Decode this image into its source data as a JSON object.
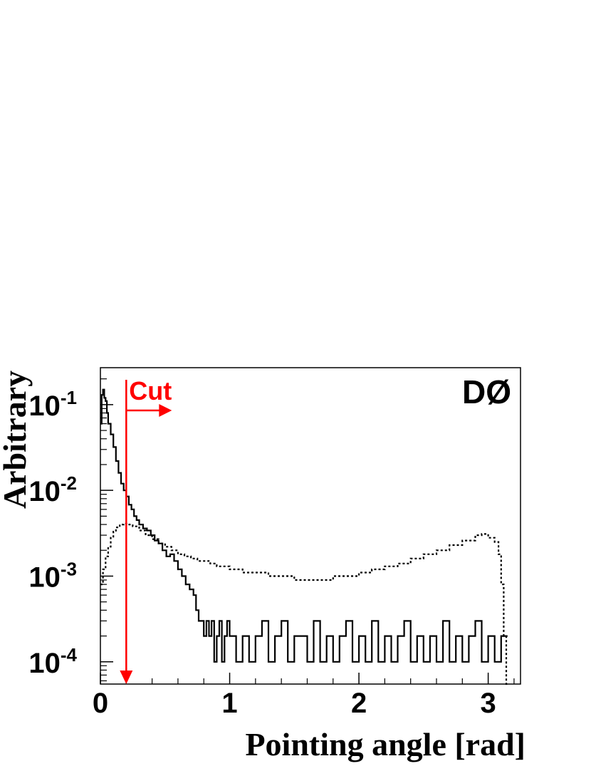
{
  "chart_data": {
    "type": "line",
    "xlabel": "Pointing angle [rad]",
    "ylabel": "Arbitrary",
    "xlim": [
      0,
      3.25
    ],
    "ylim": [
      5.5e-05,
      0.27
    ],
    "yscale": "log",
    "x_ticks": [
      {
        "value": 0,
        "label": "0"
      },
      {
        "value": 1,
        "label": "1"
      },
      {
        "value": 2,
        "label": "2"
      },
      {
        "value": 3,
        "label": "3"
      }
    ],
    "y_ticks": [
      {
        "value": 0.1,
        "base": "10",
        "exp": "-1"
      },
      {
        "value": 0.01,
        "base": "10",
        "exp": "-2"
      },
      {
        "value": 0.001,
        "base": "10",
        "exp": "-3"
      },
      {
        "value": 0.0001,
        "base": "10",
        "exp": "-4"
      }
    ],
    "experiment_label": "DØ",
    "cut": {
      "label": "Cut",
      "x": 0.2,
      "color": "#ff0000",
      "direction": "right"
    },
    "series": [
      {
        "style": "solid",
        "x": [
          0.0,
          0.01,
          0.02,
          0.03,
          0.04,
          0.05,
          0.06,
          0.08,
          0.1,
          0.12,
          0.14,
          0.16,
          0.18,
          0.2,
          0.22,
          0.24,
          0.26,
          0.28,
          0.3,
          0.33,
          0.36,
          0.39,
          0.42,
          0.45,
          0.48,
          0.51,
          0.54,
          0.57,
          0.6,
          0.63,
          0.66,
          0.69,
          0.72,
          0.74,
          0.76,
          0.78,
          0.8,
          0.82,
          0.84,
          0.86,
          0.88,
          0.9,
          0.92,
          0.94,
          0.96,
          0.98,
          1.0,
          1.05,
          1.1,
          1.15,
          1.2,
          1.25,
          1.3,
          1.35,
          1.4,
          1.45,
          1.5,
          1.55,
          1.6,
          1.65,
          1.7,
          1.75,
          1.8,
          1.85,
          1.9,
          1.95,
          2.0,
          2.05,
          2.1,
          2.15,
          2.2,
          2.25,
          2.3,
          2.35,
          2.4,
          2.45,
          2.5,
          2.55,
          2.6,
          2.65,
          2.7,
          2.75,
          2.8,
          2.85,
          2.9,
          2.95,
          3.0,
          3.05,
          3.1
        ],
        "values": [
          0.06,
          0.13,
          0.15,
          0.12,
          0.11,
          0.08,
          0.06,
          0.045,
          0.032,
          0.022,
          0.016,
          0.012,
          0.01,
          0.0085,
          0.0068,
          0.006,
          0.005,
          0.0045,
          0.004,
          0.0036,
          0.0034,
          0.003,
          0.0026,
          0.0024,
          0.002,
          0.0017,
          0.0018,
          0.0015,
          0.0012,
          0.001,
          0.0008,
          0.0007,
          0.0006,
          0.0004,
          0.0003,
          0.0003,
          0.0002,
          0.0003,
          0.0002,
          0.0003,
          0.0001,
          0.0002,
          0.0003,
          0.0001,
          0.0002,
          0.0003,
          0.0002,
          0.0001,
          0.0002,
          0.0001,
          0.0002,
          0.0003,
          0.0001,
          0.0002,
          0.0003,
          0.0001,
          0.0002,
          0.0002,
          0.0001,
          0.0003,
          0.0001,
          0.0002,
          0.0001,
          0.0002,
          0.0003,
          0.0001,
          0.0002,
          0.0001,
          0.0003,
          0.0001,
          0.0002,
          0.0001,
          0.0002,
          0.0003,
          0.0001,
          0.0002,
          0.0001,
          0.0002,
          0.0001,
          0.0003,
          0.0001,
          0.0002,
          0.0001,
          0.0002,
          0.0003,
          0.0001,
          0.0002,
          0.0001,
          0.0002
        ]
      },
      {
        "style": "dotted",
        "x": [
          0.0,
          0.02,
          0.04,
          0.06,
          0.08,
          0.1,
          0.12,
          0.15,
          0.18,
          0.21,
          0.25,
          0.3,
          0.35,
          0.4,
          0.45,
          0.5,
          0.55,
          0.6,
          0.65,
          0.7,
          0.75,
          0.8,
          0.85,
          0.9,
          0.95,
          1.0,
          1.1,
          1.2,
          1.3,
          1.4,
          1.5,
          1.6,
          1.7,
          1.8,
          1.9,
          2.0,
          2.1,
          2.2,
          2.3,
          2.4,
          2.5,
          2.6,
          2.7,
          2.8,
          2.9,
          2.95,
          3.0,
          3.05,
          3.08,
          3.1,
          3.12,
          3.14
        ],
        "values": [
          0.0008,
          0.0012,
          0.0017,
          0.0022,
          0.0028,
          0.0033,
          0.0037,
          0.004,
          0.0041,
          0.004,
          0.0038,
          0.0034,
          0.003,
          0.0027,
          0.0024,
          0.0022,
          0.002,
          0.0018,
          0.0017,
          0.0016,
          0.0015,
          0.0015,
          0.0014,
          0.0013,
          0.0013,
          0.0012,
          0.0011,
          0.0011,
          0.001,
          0.001,
          0.0009,
          0.0009,
          0.0009,
          0.001,
          0.001,
          0.0011,
          0.0012,
          0.0013,
          0.0014,
          0.0016,
          0.0018,
          0.002,
          0.0023,
          0.0026,
          0.003,
          0.0031,
          0.0028,
          0.0025,
          0.0018,
          0.0008,
          0.0002,
          5.5e-05
        ]
      }
    ]
  }
}
